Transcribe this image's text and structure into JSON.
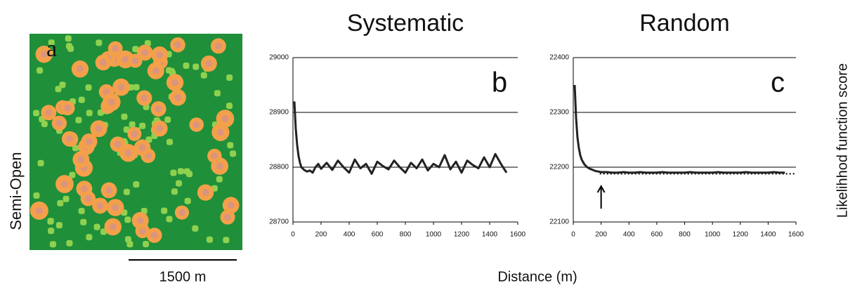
{
  "panel_a": {
    "label": "a",
    "row_label": "Semi-Open",
    "scale_bar": "1500 m"
  },
  "x_label": "Distance (m)",
  "y_label": "Likelihhod function score",
  "chart_data": [
    {
      "type": "line",
      "title": "Systematic",
      "panel_label": "b",
      "color": "#222222",
      "x": [
        10,
        20,
        30,
        40,
        50,
        60,
        80,
        100,
        120,
        140,
        160,
        180,
        200,
        240,
        280,
        320,
        360,
        400,
        440,
        480,
        520,
        560,
        600,
        640,
        680,
        720,
        760,
        800,
        840,
        880,
        920,
        960,
        1000,
        1040,
        1080,
        1120,
        1160,
        1200,
        1240,
        1280,
        1320,
        1360,
        1400,
        1440,
        1480,
        1520
      ],
      "values": [
        28920,
        28870,
        28840,
        28820,
        28808,
        28800,
        28795,
        28792,
        28794,
        28790,
        28800,
        28806,
        28797,
        28808,
        28795,
        28812,
        28800,
        28790,
        28814,
        28798,
        28806,
        28788,
        28810,
        28802,
        28796,
        28812,
        28800,
        28790,
        28808,
        28798,
        28814,
        28794,
        28806,
        28800,
        28822,
        28796,
        28810,
        28790,
        28812,
        28804,
        28798,
        28818,
        28800,
        28824,
        28806,
        28790
      ],
      "xlim": [
        0,
        1600
      ],
      "xticks": [
        0,
        200,
        400,
        600,
        800,
        1000,
        1200,
        1400,
        1600
      ],
      "ylim": [
        28700,
        29000
      ],
      "yticks": [
        28700,
        28800,
        28900,
        29000
      ],
      "grid": true
    },
    {
      "type": "line",
      "title": "Random",
      "panel_label": "c",
      "color": "#222222",
      "x": [
        10,
        20,
        30,
        40,
        50,
        60,
        80,
        100,
        120,
        140,
        160,
        180,
        200,
        240,
        280,
        320,
        360,
        400,
        440,
        480,
        520,
        560,
        600,
        640,
        680,
        720,
        760,
        800,
        840,
        880,
        920,
        960,
        1000,
        1040,
        1080,
        1120,
        1160,
        1200,
        1240,
        1280,
        1320,
        1360,
        1400,
        1440,
        1480,
        1520
      ],
      "values": [
        22350,
        22290,
        22255,
        22235,
        22222,
        22214,
        22205,
        22200,
        22197,
        22195,
        22193,
        22192,
        22191,
        22191,
        22190,
        22190,
        22191,
        22190,
        22190,
        22191,
        22190,
        22190,
        22190,
        22191,
        22190,
        22190,
        22190,
        22190,
        22191,
        22190,
        22190,
        22190,
        22190,
        22191,
        22190,
        22190,
        22190,
        22190,
        22191,
        22190,
        22190,
        22190,
        22190,
        22191,
        22190,
        22190
      ],
      "xlim": [
        0,
        1600
      ],
      "xticks": [
        0,
        200,
        400,
        600,
        800,
        1000,
        1200,
        1400,
        1600
      ],
      "ylim": [
        22100,
        22400
      ],
      "yticks": [
        22100,
        22200,
        22300,
        22400
      ],
      "grid": true,
      "reference_line": {
        "value": 22188,
        "from": 190,
        "to": 1600
      },
      "arrow_x": 200
    }
  ]
}
